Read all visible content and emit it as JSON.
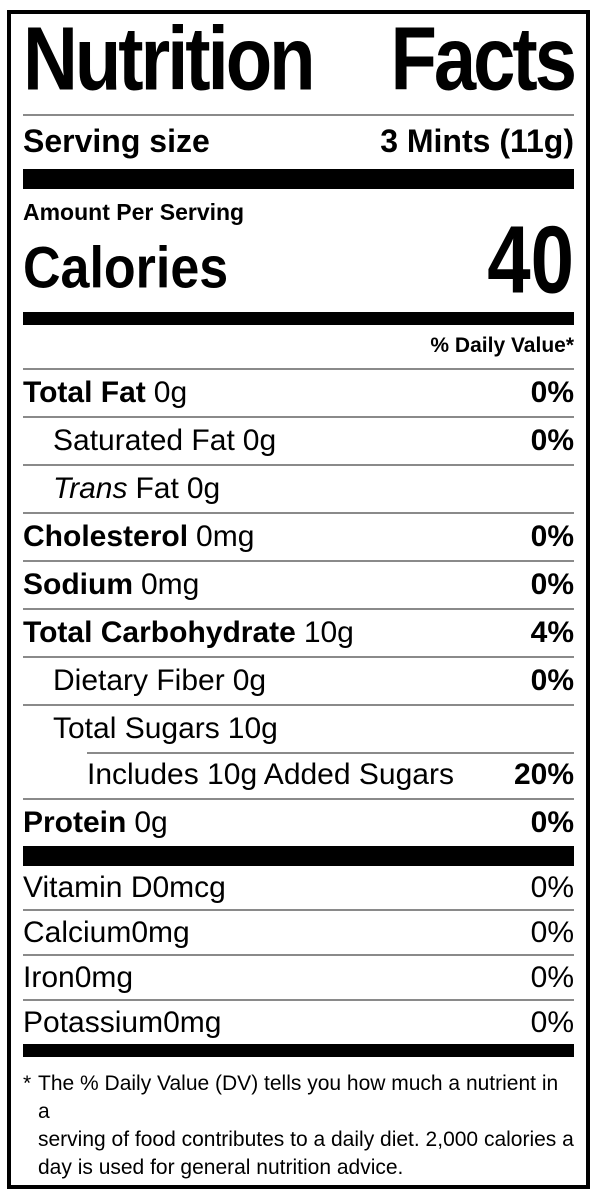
{
  "title": {
    "left": "Nutrition",
    "right": "Facts"
  },
  "serving_size": {
    "label": "Serving size",
    "value": "3 Mints (11g)"
  },
  "amount_per_serving": "Amount Per Serving",
  "calories": {
    "label": "Calories",
    "value": "40"
  },
  "daily_value_header": "% Daily Value*",
  "rows": [
    {
      "name": "Total Fat",
      "amount": "0g",
      "percent": "0%"
    },
    {
      "name": "Saturated Fat",
      "amount": "0g",
      "percent": "0%"
    },
    {
      "name_italic": "Trans",
      "name": "Fat",
      "amount": "0g",
      "percent": ""
    },
    {
      "name": "Cholesterol",
      "amount": "0mg",
      "percent": "0%"
    },
    {
      "name": "Sodium",
      "amount": "0mg",
      "percent": "0%"
    },
    {
      "name": "Total Carbohydrate",
      "amount": "10g",
      "percent": "4%"
    },
    {
      "name": "Dietary Fiber",
      "amount": "0g",
      "percent": "0%"
    },
    {
      "name": "Total Sugars",
      "amount": "10g",
      "percent": ""
    },
    {
      "name": "Includes 10g Added Sugars",
      "amount": "",
      "percent": "20%"
    },
    {
      "name": "Protein",
      "amount": "0g",
      "percent": "0%"
    }
  ],
  "vitamins": [
    {
      "name": "Vitamin D",
      "amount": "0mcg",
      "percent": "0%"
    },
    {
      "name": "Calcium",
      "amount": "0mg",
      "percent": "0%"
    },
    {
      "name": "Iron",
      "amount": "0mg",
      "percent": "0%"
    },
    {
      "name": "Potassium",
      "amount": "0mg",
      "percent": "0%"
    }
  ],
  "footnote": {
    "asterisk": "*",
    "line1": "The % Daily Value (DV) tells you how much a nutrient in a",
    "line2": "serving of food contributes to a daily diet. 2,000 calories a",
    "line3": "day is used for general nutrition advice."
  },
  "colors": {
    "ink": "#000000",
    "paper": "#ffffff",
    "hairline": "#8a8a8a"
  }
}
